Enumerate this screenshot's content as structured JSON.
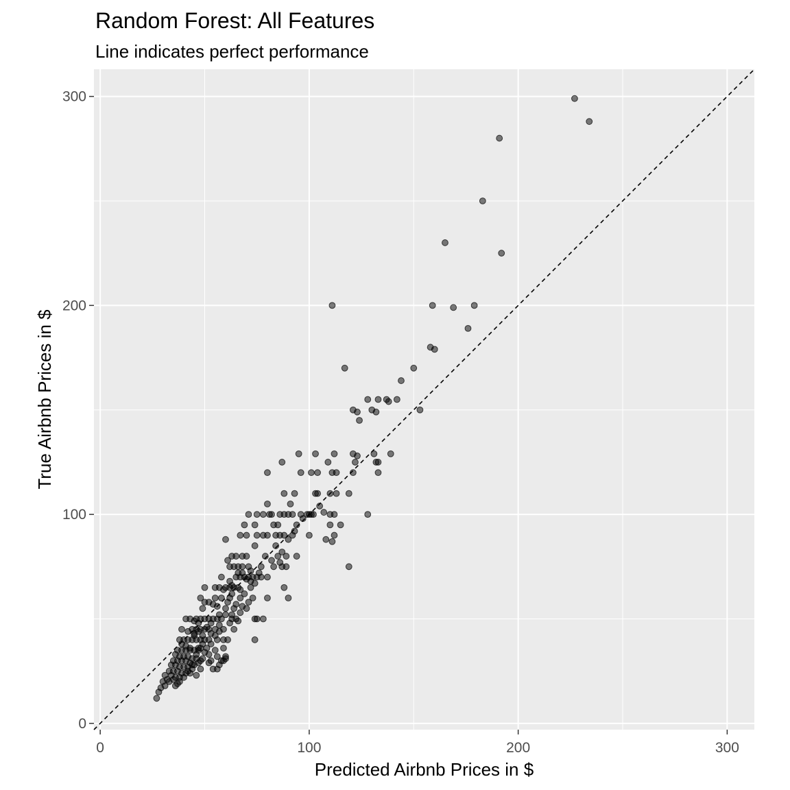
{
  "chart_data": {
    "type": "scatter",
    "title": "Random Forest: All Features",
    "subtitle": "Line indicates perfect performance",
    "xlabel": "Predicted Airbnb Prices in $",
    "ylabel": "True Airbnb Prices in $",
    "xlim": [
      -3,
      313
    ],
    "ylim": [
      -3,
      313
    ],
    "xticks": [
      0,
      100,
      200,
      300
    ],
    "yticks": [
      0,
      100,
      200,
      300
    ],
    "xtick_labels": [
      "0",
      "100",
      "200",
      "300"
    ],
    "ytick_labels": [
      "0",
      "100",
      "200",
      "300"
    ],
    "grid": true,
    "reference_line": {
      "style": "dashed",
      "slope": 1,
      "intercept": 0
    },
    "colors": {
      "panel": "#ebebeb",
      "grid": "#ffffff",
      "point": "#000000",
      "point_alpha": 0.5
    },
    "points": [
      [
        227,
        299
      ],
      [
        234,
        288
      ],
      [
        191,
        280
      ],
      [
        183,
        250
      ],
      [
        165,
        230
      ],
      [
        192,
        225
      ],
      [
        111,
        200
      ],
      [
        159,
        200
      ],
      [
        169,
        199
      ],
      [
        179,
        200
      ],
      [
        176,
        189
      ],
      [
        158,
        180
      ],
      [
        160,
        179
      ],
      [
        117,
        170
      ],
      [
        150,
        170
      ],
      [
        144,
        164
      ],
      [
        128,
        155
      ],
      [
        133,
        155
      ],
      [
        137,
        155
      ],
      [
        138,
        154
      ],
      [
        142,
        155
      ],
      [
        121,
        150
      ],
      [
        123,
        149
      ],
      [
        130,
        150
      ],
      [
        132,
        149
      ],
      [
        153,
        150
      ],
      [
        124,
        145
      ],
      [
        95,
        129
      ],
      [
        103,
        129
      ],
      [
        112,
        129
      ],
      [
        121,
        129
      ],
      [
        123,
        128
      ],
      [
        131,
        129
      ],
      [
        139,
        129
      ],
      [
        87,
        125
      ],
      [
        109,
        125
      ],
      [
        122,
        125
      ],
      [
        132,
        125
      ],
      [
        133,
        125
      ],
      [
        80,
        120
      ],
      [
        96,
        120
      ],
      [
        101,
        120
      ],
      [
        104,
        120
      ],
      [
        111,
        120
      ],
      [
        113,
        120
      ],
      [
        121,
        120
      ],
      [
        133,
        120
      ],
      [
        88,
        110
      ],
      [
        93,
        110
      ],
      [
        103,
        110
      ],
      [
        110,
        110
      ],
      [
        113,
        110
      ],
      [
        119,
        110
      ],
      [
        80,
        105
      ],
      [
        91,
        105
      ],
      [
        71,
        100
      ],
      [
        75,
        100
      ],
      [
        78,
        100
      ],
      [
        81,
        100
      ],
      [
        82,
        100
      ],
      [
        86,
        100
      ],
      [
        88,
        100
      ],
      [
        90,
        100
      ],
      [
        92,
        100
      ],
      [
        96,
        100
      ],
      [
        101,
        100
      ],
      [
        102,
        100
      ],
      [
        110,
        100
      ],
      [
        112,
        100
      ],
      [
        128,
        100
      ],
      [
        69,
        95
      ],
      [
        74,
        95
      ],
      [
        83,
        95
      ],
      [
        85,
        95
      ],
      [
        94,
        95
      ],
      [
        110,
        95
      ],
      [
        115,
        95
      ],
      [
        67,
        90
      ],
      [
        70,
        90
      ],
      [
        75,
        90
      ],
      [
        78,
        90
      ],
      [
        80,
        90
      ],
      [
        84,
        90
      ],
      [
        86,
        90
      ],
      [
        88,
        90
      ],
      [
        92,
        90
      ],
      [
        100,
        90
      ],
      [
        112,
        90
      ],
      [
        108,
        88
      ],
      [
        111,
        87
      ],
      [
        60,
        88
      ],
      [
        74,
        85
      ],
      [
        84,
        85
      ],
      [
        87,
        82
      ],
      [
        79,
        80
      ],
      [
        85,
        80
      ],
      [
        89,
        80
      ],
      [
        94,
        80
      ],
      [
        63,
        80
      ],
      [
        65,
        80
      ],
      [
        68,
        80
      ],
      [
        70,
        80
      ],
      [
        61,
        78
      ],
      [
        64,
        75
      ],
      [
        66,
        75
      ],
      [
        68,
        75
      ],
      [
        71,
        75
      ],
      [
        77,
        75
      ],
      [
        83,
        75
      ],
      [
        87,
        75
      ],
      [
        89,
        75
      ],
      [
        119,
        75
      ],
      [
        65,
        70
      ],
      [
        67,
        70
      ],
      [
        69,
        70
      ],
      [
        71,
        70
      ],
      [
        73,
        70
      ],
      [
        75,
        70
      ],
      [
        77,
        70
      ],
      [
        58,
        70
      ],
      [
        62,
        68
      ],
      [
        60,
        65
      ],
      [
        62,
        65
      ],
      [
        64,
        65
      ],
      [
        66,
        65
      ],
      [
        72,
        65
      ],
      [
        88,
        65
      ],
      [
        50,
        65
      ],
      [
        55,
        65
      ],
      [
        57,
        65
      ],
      [
        59,
        64
      ],
      [
        63,
        62
      ],
      [
        55,
        60
      ],
      [
        58,
        60
      ],
      [
        62,
        60
      ],
      [
        67,
        60
      ],
      [
        73,
        60
      ],
      [
        80,
        60
      ],
      [
        90,
        60
      ],
      [
        48,
        60
      ],
      [
        50,
        58
      ],
      [
        52,
        58
      ],
      [
        54,
        57
      ],
      [
        56,
        56
      ],
      [
        60,
        55
      ],
      [
        64,
        55
      ],
      [
        70,
        55
      ],
      [
        49,
        55
      ],
      [
        46,
        50
      ],
      [
        48,
        50
      ],
      [
        50,
        50
      ],
      [
        52,
        50
      ],
      [
        54,
        50
      ],
      [
        56,
        50
      ],
      [
        58,
        50
      ],
      [
        63,
        50
      ],
      [
        65,
        50
      ],
      [
        74,
        50
      ],
      [
        75,
        50
      ],
      [
        78,
        50
      ],
      [
        41,
        50
      ],
      [
        43,
        50
      ],
      [
        45,
        49
      ],
      [
        47,
        48
      ],
      [
        53,
        48
      ],
      [
        57,
        47
      ],
      [
        62,
        48
      ],
      [
        66,
        49
      ],
      [
        44,
        45
      ],
      [
        46,
        45
      ],
      [
        48,
        45
      ],
      [
        50,
        45
      ],
      [
        52,
        45
      ],
      [
        55,
        45
      ],
      [
        59,
        45
      ],
      [
        64,
        45
      ],
      [
        39,
        45
      ],
      [
        42,
        44
      ],
      [
        45,
        43
      ],
      [
        49,
        42
      ],
      [
        40,
        40
      ],
      [
        42,
        40
      ],
      [
        44,
        40
      ],
      [
        46,
        40
      ],
      [
        48,
        40
      ],
      [
        50,
        40
      ],
      [
        52,
        40
      ],
      [
        56,
        40
      ],
      [
        59,
        40
      ],
      [
        74,
        40
      ],
      [
        38,
        40
      ],
      [
        39,
        38
      ],
      [
        41,
        37
      ],
      [
        43,
        36
      ],
      [
        47,
        36
      ],
      [
        51,
        36
      ],
      [
        55,
        35
      ],
      [
        59,
        36
      ],
      [
        37,
        35
      ],
      [
        39,
        35
      ],
      [
        41,
        35
      ],
      [
        43,
        35
      ],
      [
        45,
        35
      ],
      [
        47,
        35
      ],
      [
        36,
        33
      ],
      [
        38,
        32
      ],
      [
        40,
        32
      ],
      [
        42,
        32
      ],
      [
        44,
        31
      ],
      [
        46,
        31
      ],
      [
        49,
        31
      ],
      [
        53,
        30
      ],
      [
        58,
        30
      ],
      [
        60,
        31
      ],
      [
        35,
        30
      ],
      [
        37,
        30
      ],
      [
        39,
        30
      ],
      [
        41,
        30
      ],
      [
        43,
        29
      ],
      [
        45,
        28
      ],
      [
        47,
        29
      ],
      [
        52,
        29
      ],
      [
        57,
        28
      ],
      [
        59,
        30
      ],
      [
        34,
        28
      ],
      [
        36,
        28
      ],
      [
        38,
        27
      ],
      [
        40,
        27
      ],
      [
        42,
        27
      ],
      [
        44,
        26
      ],
      [
        48,
        26
      ],
      [
        54,
        26
      ],
      [
        56,
        26
      ],
      [
        33,
        25
      ],
      [
        35,
        25
      ],
      [
        37,
        25
      ],
      [
        39,
        24
      ],
      [
        41,
        24
      ],
      [
        43,
        24
      ],
      [
        46,
        23
      ],
      [
        34,
        23
      ],
      [
        36,
        22
      ],
      [
        38,
        22
      ],
      [
        31,
        23
      ],
      [
        32,
        21
      ],
      [
        35,
        21
      ],
      [
        30,
        20
      ],
      [
        33,
        20
      ],
      [
        37,
        19
      ],
      [
        31,
        18
      ],
      [
        29,
        17
      ],
      [
        28,
        15
      ],
      [
        27,
        12
      ],
      [
        48,
        36
      ],
      [
        46,
        33
      ],
      [
        50,
        34
      ],
      [
        44,
        28
      ],
      [
        42,
        25
      ],
      [
        40,
        22
      ],
      [
        38,
        20
      ],
      [
        36,
        18
      ],
      [
        45,
        42
      ],
      [
        47,
        44
      ],
      [
        51,
        46
      ],
      [
        53,
        43
      ],
      [
        55,
        42
      ],
      [
        57,
        44
      ],
      [
        49,
        38
      ],
      [
        53,
        38
      ],
      [
        61,
        40
      ],
      [
        56,
        32
      ],
      [
        60,
        32
      ],
      [
        52,
        33
      ],
      [
        48,
        30
      ],
      [
        66,
        72
      ],
      [
        68,
        72
      ],
      [
        70,
        69
      ],
      [
        72,
        68
      ],
      [
        74,
        67
      ],
      [
        63,
        66
      ],
      [
        67,
        64
      ],
      [
        69,
        62
      ],
      [
        61,
        58
      ],
      [
        65,
        57
      ],
      [
        68,
        56
      ],
      [
        71,
        58
      ],
      [
        60,
        52
      ],
      [
        63,
        52
      ],
      [
        67,
        53
      ],
      [
        57,
        52
      ],
      [
        62,
        75
      ],
      [
        72,
        73
      ],
      [
        76,
        72
      ],
      [
        80,
        70
      ],
      [
        82,
        78
      ],
      [
        86,
        77
      ],
      [
        90,
        88
      ],
      [
        93,
        92
      ],
      [
        97,
        98
      ],
      [
        99,
        100
      ],
      [
        105,
        104
      ],
      [
        107,
        101
      ],
      [
        100,
        100
      ],
      [
        104,
        110
      ]
    ]
  }
}
